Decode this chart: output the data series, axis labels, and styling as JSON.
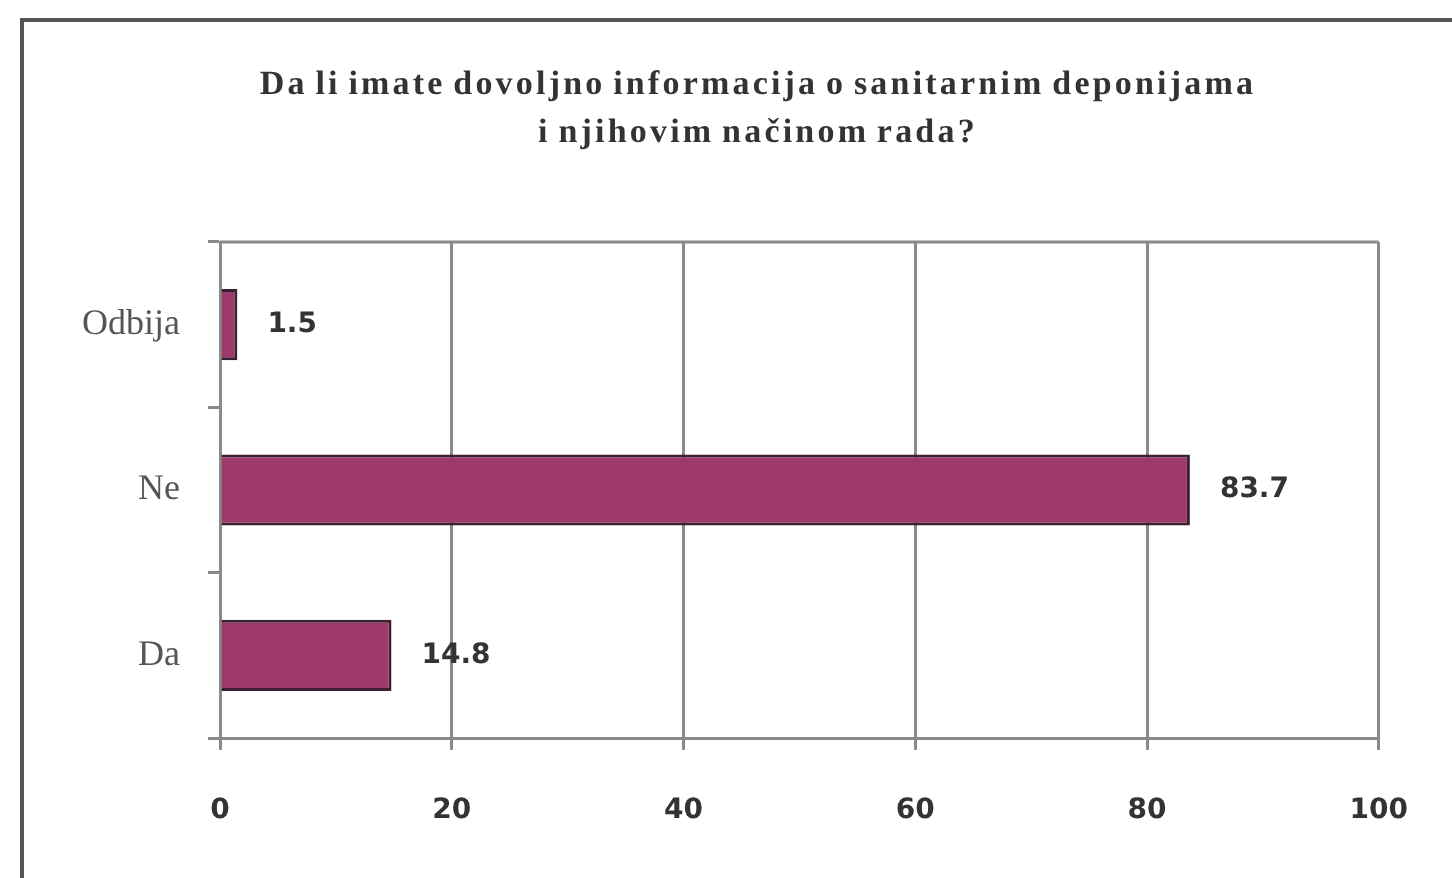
{
  "chart_data": {
    "type": "bar",
    "orientation": "horizontal",
    "title": "Da li imate dovoljno informacija o sanitarnim deponijama\ni njihovim načinom rada?",
    "categories": [
      "Odbija",
      "Ne",
      "Da"
    ],
    "values": [
      1.5,
      83.7,
      14.8
    ],
    "color": "#9e3a6b",
    "xlim": [
      0,
      100
    ],
    "xticks": [
      0,
      20,
      40,
      60,
      80,
      100
    ],
    "grid": "x",
    "data_labels": true
  }
}
